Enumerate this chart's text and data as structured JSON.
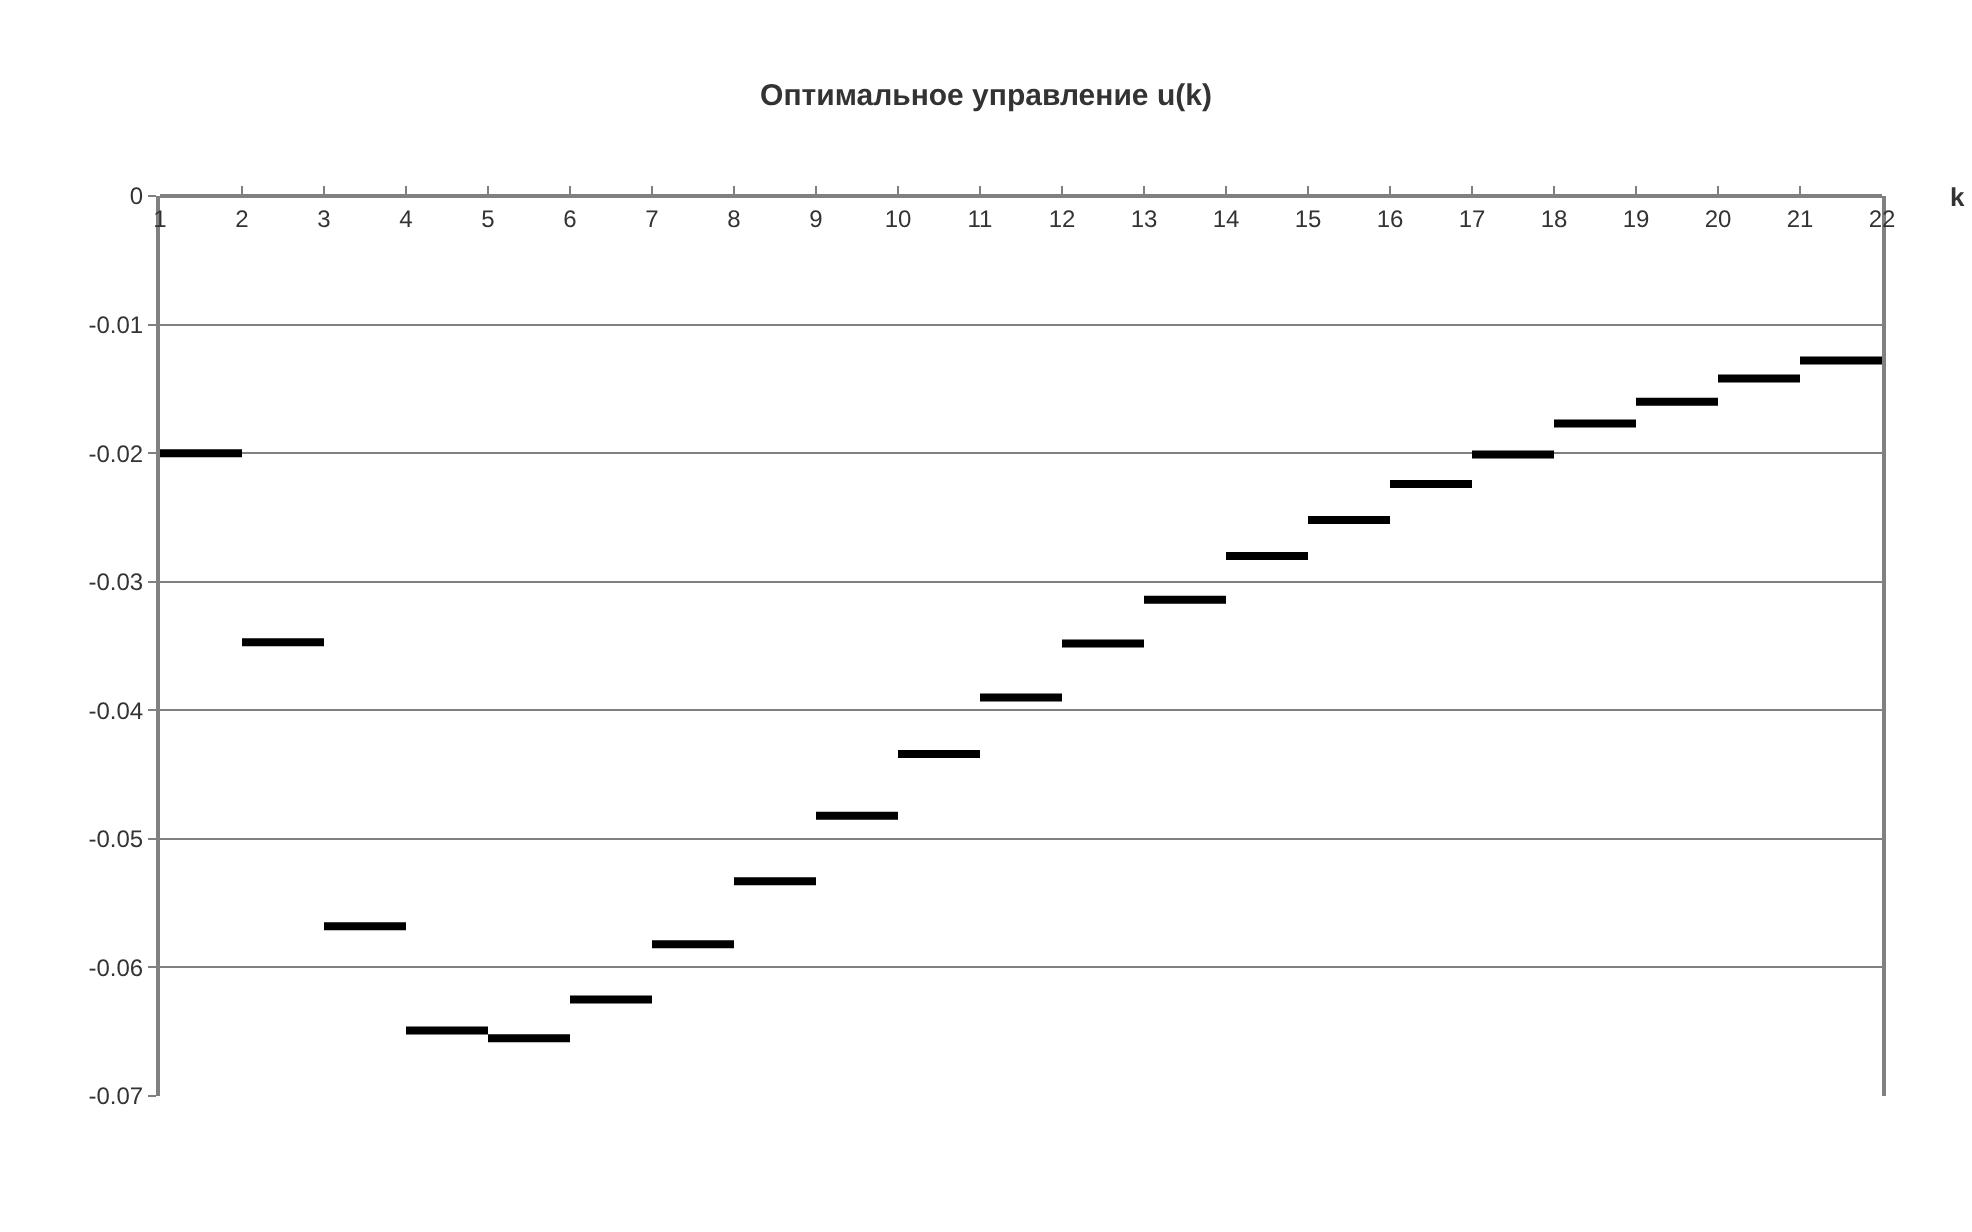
{
  "chart_data": {
    "type": "step",
    "title": "Оптимальное управление u(k)",
    "xlabel": "k",
    "x": [
      1,
      2,
      3,
      4,
      5,
      6,
      7,
      8,
      9,
      10,
      11,
      12,
      13,
      14,
      15,
      16,
      17,
      18,
      19,
      20,
      21,
      22
    ],
    "series": [
      {
        "color": "#000000",
        "values": [
          -0.02,
          -0.0347,
          -0.0568,
          -0.0649,
          -0.0655,
          -0.0625,
          -0.0582,
          -0.0533,
          -0.0482,
          -0.0434,
          -0.039,
          -0.0348,
          -0.0314,
          -0.028,
          -0.0252,
          -0.0224,
          -0.0201,
          -0.0177,
          -0.016,
          -0.0142,
          -0.0128,
          -0.0128
        ]
      }
    ],
    "xlim": [
      1,
      22
    ],
    "xticks": [
      1,
      2,
      3,
      4,
      5,
      6,
      7,
      8,
      9,
      10,
      11,
      12,
      13,
      14,
      15,
      16,
      17,
      18,
      19,
      20,
      21,
      22
    ],
    "ylim": [
      -0.07,
      0
    ],
    "yticks": [
      0,
      -0.01,
      -0.02,
      -0.03,
      -0.04,
      -0.05,
      -0.06,
      -0.07
    ],
    "grid": "y",
    "marker": "none",
    "line_style": "solid"
  }
}
